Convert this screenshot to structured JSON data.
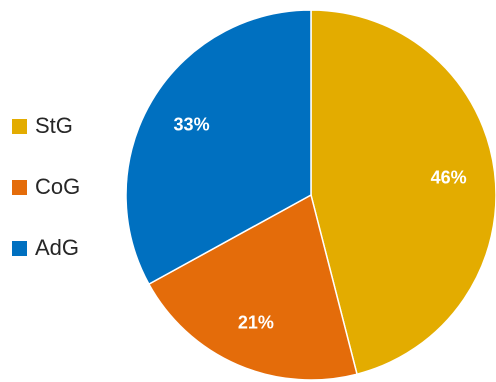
{
  "chart_data": {
    "type": "pie",
    "categories": [
      "StG",
      "CoG",
      "AdG"
    ],
    "values": [
      46,
      21,
      33
    ],
    "labels": [
      "46%",
      "21%",
      "33%"
    ],
    "colors": [
      "#E3AC00",
      "#E46C0A",
      "#0070C0"
    ],
    "title": "",
    "legend_position": "left",
    "start_angle": "12 o'clock, clockwise"
  },
  "legend": {
    "items": [
      {
        "label": "StG",
        "color": "#E3AC00"
      },
      {
        "label": "CoG",
        "color": "#E46C0A"
      },
      {
        "label": "AdG",
        "color": "#0070C0"
      }
    ]
  }
}
